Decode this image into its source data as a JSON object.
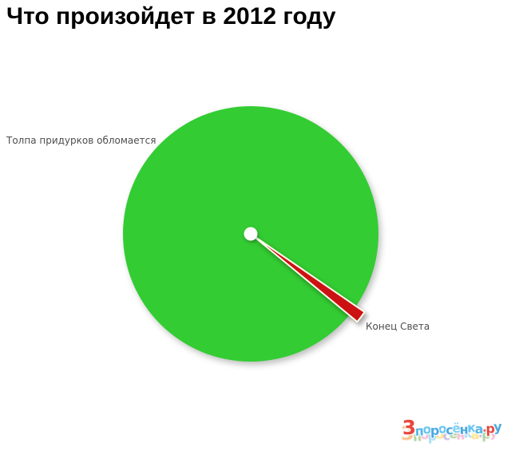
{
  "title": "Что произойдет в 2012 году",
  "chart_data": {
    "type": "pie",
    "title": "Что произойдет в 2012 году",
    "slices": [
      {
        "label": "Толпа придурков обломается",
        "value": 98.6,
        "color": "#33cc33"
      },
      {
        "label": "Конец Света",
        "value": 1.4,
        "color": "#cc1114",
        "exploded": true,
        "direction_deg": 37
      }
    ],
    "legend": false,
    "data_labels": "outside",
    "center_hole": true,
    "background": "#ffffff"
  },
  "labels": {
    "left": "Толпа придурков обломается",
    "right": "Конец Света"
  },
  "watermark": {
    "text": "3поросёнка.ру",
    "main_colors": [
      "#e8453c",
      "#55b6e8",
      "#66c4f0",
      "#48a7e0",
      "#66c4f0",
      "#48a7e0",
      "#7fd0f2",
      "#48a7e0",
      "#66c4f0",
      "#55b6e8",
      "#e8685c",
      "#e8453c",
      "#48a7e0"
    ],
    "back_colors": [
      "#f6b26b",
      "#93c47d",
      "#f7a8c9",
      "#8ad2f0",
      "#ffd966",
      "#b4a7d6",
      "#93c47d",
      "#f7a8c9",
      "#8ad2f0",
      "#ffd966",
      "#b4a7d6",
      "#93c47d",
      "#f7a8c9"
    ]
  },
  "colors": {
    "wedge_border": "#fffdeb",
    "label_text": "#4d4d4d",
    "title_text": "#000000"
  }
}
